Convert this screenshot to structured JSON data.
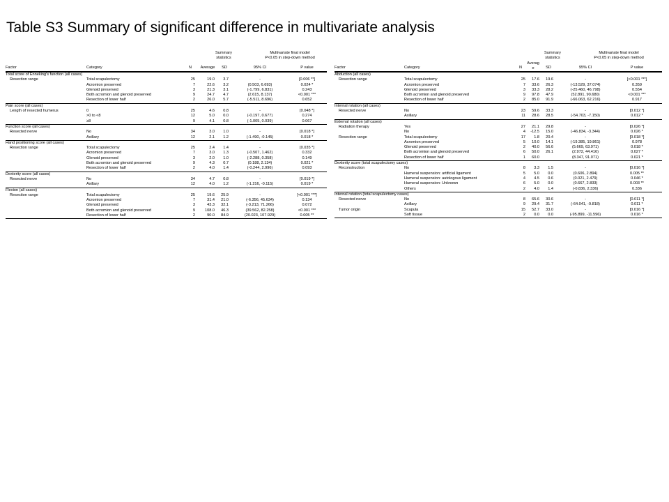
{
  "title": "Table S3 Summary of significant difference in multivariate analysis",
  "header": {
    "summary": "Summary\nstatistics",
    "model": "Multivariate final model\nP<0.05 in step-down method",
    "factor": "Factor",
    "category": "Category",
    "n": "N",
    "average": "Average",
    "average_right": "Averag\ne",
    "sd": "SD",
    "ci": "95% CI",
    "p": "P value"
  },
  "left_rows": [
    {
      "kind": "section",
      "text": "Total score of Enneking's function (all cases)"
    },
    {
      "kind": "data",
      "factor": "Resection range",
      "category": "Total scapulectomy",
      "n": "25",
      "avg": "19.0",
      "sd": "3.7",
      "ci": "-",
      "p": "[0.006 **]"
    },
    {
      "kind": "data",
      "factor": "",
      "category": "Acromion preserved",
      "n": "7",
      "avg": "22.6",
      "sd": "3.2",
      "ci": "(0.503, 6.693)",
      "p": "0.024 *"
    },
    {
      "kind": "data",
      "factor": "",
      "category": "Glenoid preserved",
      "n": "3",
      "avg": "21.3",
      "sd": "3.1",
      "ci": "(-1.799, 6.831)",
      "p": "0.243"
    },
    {
      "kind": "data",
      "factor": "",
      "category": "Both acromion and glenoid preserved",
      "n": "9",
      "avg": "24.7",
      "sd": "4.7",
      "ci": "(2.615, 8.137)",
      "p": "<0.001 ***"
    },
    {
      "kind": "data",
      "factor": "",
      "category": "Resection of lower half",
      "n": "2",
      "avg": "26.0",
      "sd": "5.7",
      "ci": "(-5.511, 8.696)",
      "p": "0.652"
    },
    {
      "kind": "section",
      "text": "Pain score (all cases)"
    },
    {
      "kind": "data",
      "factor": "Length of resected humerus",
      "category": "0",
      "n": "25",
      "avg": "4.6",
      "sd": "0.8",
      "ci": "-",
      "p": "[0.048 *]"
    },
    {
      "kind": "data",
      "factor": "",
      "category": ">0 to <8",
      "n": "12",
      "avg": "5.0",
      "sd": "0.0",
      "ci": "(-0.197, 0.677)",
      "p": "0.274"
    },
    {
      "kind": "data",
      "factor": "",
      "category": "≥8",
      "n": "9",
      "avg": "4.1",
      "sd": "0.8",
      "ci": "(-1.005, 0.039)",
      "p": "0.067"
    },
    {
      "kind": "section",
      "text": "Function score (all cases)"
    },
    {
      "kind": "data",
      "factor": "Resected nerve",
      "category": "No",
      "n": "34",
      "avg": "3.0",
      "sd": "1.0",
      "ci": "-",
      "p": "[0.018 *]"
    },
    {
      "kind": "data",
      "factor": "",
      "category": "Axillary",
      "n": "12",
      "avg": "2.1",
      "sd": "1.2",
      "ci": "(-1.490, -0.145)",
      "p": "0.018 *"
    },
    {
      "kind": "section",
      "text": "Hand positioning score (all cases)"
    },
    {
      "kind": "data",
      "factor": "Resection range",
      "category": "Total scapulectomy",
      "n": "25",
      "avg": "2.4",
      "sd": "1.4",
      "ci": "-",
      "p": "[0.035 *]"
    },
    {
      "kind": "data",
      "factor": "",
      "category": "Acromion preserved",
      "n": "7",
      "avg": "3.0",
      "sd": "1.3",
      "ci": "(-0.507, 1.462)",
      "p": "0.332"
    },
    {
      "kind": "data",
      "factor": "",
      "category": "Glenoid preserved",
      "n": "3",
      "avg": "2.0",
      "sd": "1.0",
      "ci": "(-2.288, 0.358)",
      "p": "0.149"
    },
    {
      "kind": "data",
      "factor": "",
      "category": "Both acromion and glenoid preserved",
      "n": "9",
      "avg": "4.3",
      "sd": "0.7",
      "ci": "(0.188, 2.134)",
      "p": "0.021 *"
    },
    {
      "kind": "data",
      "factor": "",
      "category": "Resection of lower half",
      "n": "2",
      "avg": "4.0",
      "sd": "1.4",
      "ci": "(-0.244, 2.996)",
      "p": "0.093"
    },
    {
      "kind": "section",
      "text": "Dexterity score (all cases)"
    },
    {
      "kind": "data",
      "factor": "Resected nerve",
      "category": "No",
      "n": "34",
      "avg": "4.7",
      "sd": "0.8",
      "ci": "-",
      "p": "[0.019 *]"
    },
    {
      "kind": "data",
      "factor": "",
      "category": "Axillary",
      "n": "12",
      "avg": "4.0",
      "sd": "1.2",
      "ci": "(-1.216, -0.115)",
      "p": "0.019 *"
    },
    {
      "kind": "section",
      "text": "Flexion (all cases)"
    },
    {
      "kind": "data",
      "factor": "Resection range",
      "category": "Total scapulectomy",
      "n": "25",
      "avg": "19.6",
      "sd": "25.9",
      "ci": "-",
      "p": "[<0.001 ***]"
    },
    {
      "kind": "data",
      "factor": "",
      "category": "Acromion preserved",
      "n": "7",
      "avg": "31.4",
      "sd": "21.0",
      "ci": "(-6.356, 45.634)",
      "p": "0.134"
    },
    {
      "kind": "data",
      "factor": "",
      "category": "Glenoid preserved",
      "n": "3",
      "avg": "43.3",
      "sd": "32.1",
      "ci": "(-3.213, 71.266)",
      "p": "0.072"
    },
    {
      "kind": "data",
      "factor": "",
      "category": "Both acromion and glenoid preserved",
      "n": "9",
      "avg": "108.0",
      "sd": "46.3",
      "ci": "(39.562, 82.258)",
      "p": "<0.001 ***"
    },
    {
      "kind": "data",
      "factor": "",
      "category": "Resection of lower half",
      "n": "2",
      "avg": "90.0",
      "sd": "84.9",
      "ci": "(20.023, 107.929)",
      "p": "0.005 **"
    }
  ],
  "right_rows": [
    {
      "kind": "section",
      "text": "Abduction (all cases)"
    },
    {
      "kind": "data",
      "factor": "Resection range",
      "category": "Total scapulectomy",
      "n": "25",
      "avg": "17.6",
      "sd": "19.6",
      "ci": "-",
      "p": "[<0.001 ***]"
    },
    {
      "kind": "data",
      "factor": "",
      "category": "Acromion preserved",
      "n": "7",
      "avg": "33.6",
      "sd": "26.3",
      "ci": "(-13.529, 37.074)",
      "p": "0.359"
    },
    {
      "kind": "data",
      "factor": "",
      "category": "Glenoid preserved",
      "n": "3",
      "avg": "33.3",
      "sd": "28.2",
      "ci": "(-25.460, 46.798)",
      "p": "0.554"
    },
    {
      "kind": "data",
      "factor": "",
      "category": "Both acromion and glenoid preserved",
      "n": "9",
      "avg": "97.8",
      "sd": "47.9",
      "ci": "(52.891, 90.680)",
      "p": "<0.001 ***"
    },
    {
      "kind": "data",
      "factor": "",
      "category": "Resection of lower half",
      "n": "2",
      "avg": "85.0",
      "sd": "91.9",
      "ci": "(-66.063, 62.216)",
      "p": "0.917"
    },
    {
      "kind": "section",
      "text": "Internal rotation (all cases)"
    },
    {
      "kind": "data",
      "factor": "Resected nerve",
      "category": "No",
      "n": "23",
      "avg": "59.6",
      "sd": "33.3",
      "ci": "-",
      "p": "[0.012 *]"
    },
    {
      "kind": "data",
      "factor": "",
      "category": "Axillary",
      "n": "11",
      "avg": "28.6",
      "sd": "28.5",
      "ci": "(-54.703, -7.150)",
      "p": "0.012 *"
    },
    {
      "kind": "section",
      "text": "External rotation (all cases)"
    },
    {
      "kind": "data",
      "factor": "Radiation therapy",
      "category": "Yes",
      "n": "27",
      "avg": "21.1",
      "sd": "29.8",
      "ci": "-",
      "p": "[0.026 *]"
    },
    {
      "kind": "data",
      "factor": "",
      "category": "No",
      "n": "4",
      "avg": "-12.5",
      "sd": "15.0",
      "ci": "(-46.834, -3.344)",
      "p": "0.026 *"
    },
    {
      "kind": "data",
      "factor": "Resection range",
      "category": "Total scapulectomy",
      "n": "17",
      "avg": "1.8",
      "sd": "20.4",
      "ci": "-",
      "p": "[0.018 *]"
    },
    {
      "kind": "data",
      "factor": "",
      "category": "Acromion preserved",
      "n": "5",
      "avg": "10.0",
      "sd": "14.1",
      "ci": "(-19.385, 19.861)",
      "p": "0.978"
    },
    {
      "kind": "data",
      "factor": "",
      "category": "Glenoid preserved",
      "n": "2",
      "avg": "40.0",
      "sd": "56.6",
      "ci": "(5.669, 63.971)",
      "p": "0.018 *"
    },
    {
      "kind": "data",
      "factor": "",
      "category": "Both acromion and glenoid preserved",
      "n": "6",
      "avg": "50.0",
      "sd": "26.1",
      "ci": "(2.972, 44.416)",
      "p": "0.027 *"
    },
    {
      "kind": "data",
      "factor": "",
      "category": "Resection of lower half",
      "n": "1",
      "avg": "60.0",
      "sd": "",
      "ci": "(8.347, 91.071)",
      "p": "0.021 *"
    },
    {
      "kind": "section",
      "text": "Dexterity score (total scapulectomy cases)"
    },
    {
      "kind": "data",
      "factor": "Reconstruction",
      "category": "No",
      "n": "8",
      "avg": "3.3",
      "sd": "1.5",
      "ci": "-",
      "p": "[0.016 *]"
    },
    {
      "kind": "data",
      "factor": "",
      "category": "Humeral suspension: artificial ligament",
      "n": "5",
      "avg": "5.0",
      "sd": "0.0",
      "ci": "(0.606, 2.894)",
      "p": "0.005 **"
    },
    {
      "kind": "data",
      "factor": "",
      "category": "Humeral suspension: autologous ligament",
      "n": "4",
      "avg": "4.5",
      "sd": "0.6",
      "ci": "(0.021, 2.479)",
      "p": "0.046 *"
    },
    {
      "kind": "data",
      "factor": "",
      "category": "Humeral suspension: Unknown",
      "n": "6",
      "avg": "5.0",
      "sd": "0.0",
      "ci": "(0.667, 2.833)",
      "p": "0.003 **"
    },
    {
      "kind": "data",
      "factor": "",
      "category": "Others",
      "n": "2",
      "avg": "4.0",
      "sd": "1.4",
      "ci": "(-0.836, 2.336)",
      "p": "0.336"
    },
    {
      "kind": "section",
      "text": "Internal rotation (total scapulectomy cases)"
    },
    {
      "kind": "data",
      "factor": "Resected nerve",
      "category": "No",
      "n": "8",
      "avg": "65.6",
      "sd": "30.6",
      "ci": "-",
      "p": "[0.011 *]"
    },
    {
      "kind": "data",
      "factor": "",
      "category": "Axillary",
      "n": "9",
      "avg": "29.4",
      "sd": "31.7",
      "ci": "(-64.041, -9.818)",
      "p": "0.011 *"
    },
    {
      "kind": "data",
      "factor": "Tumor origin",
      "category": "Scapula",
      "n": "15",
      "avg": "52.7",
      "sd": "33.0",
      "ci": "-",
      "p": "[0.016 *]"
    },
    {
      "kind": "data",
      "factor": "",
      "category": "Soft tissue",
      "n": "2",
      "avg": "0.0",
      "sd": "0.0",
      "ci": "(-95.899, -11.596)",
      "p": "0.016 *"
    }
  ]
}
